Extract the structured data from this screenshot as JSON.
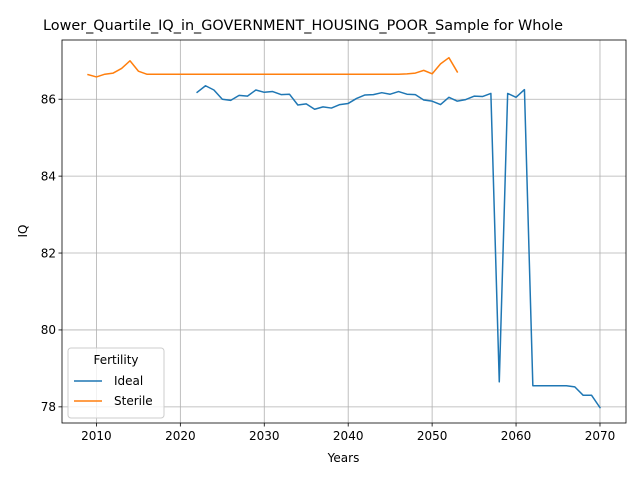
{
  "chart_data": {
    "type": "line",
    "title": "Lower_Quartile_IQ_in_GOVERNMENT_HOUSING_POOR_Sample for Whole",
    "xlabel": "Years",
    "ylabel": "IQ",
    "xlim": [
      2005.9,
      2073.1
    ],
    "ylim": [
      77.58,
      87.54
    ],
    "xticks": [
      2010,
      2020,
      2030,
      2040,
      2050,
      2060,
      2070
    ],
    "yticks": [
      78,
      80,
      82,
      84,
      86
    ],
    "grid": true,
    "legend": {
      "title": "Fertility",
      "placement": "lower-left"
    },
    "series": [
      {
        "name": "Ideal",
        "color": "#1f77b4",
        "x": [
          2022,
          2023,
          2024,
          2025,
          2026,
          2027,
          2028,
          2029,
          2030,
          2031,
          2032,
          2033,
          2034,
          2035,
          2036,
          2037,
          2038,
          2039,
          2040,
          2041,
          2042,
          2043,
          2044,
          2045,
          2046,
          2047,
          2048,
          2049,
          2050,
          2051,
          2052,
          2053,
          2054,
          2055,
          2056,
          2057,
          2058,
          2059,
          2060,
          2061,
          2062,
          2063,
          2064,
          2065,
          2066,
          2067,
          2068,
          2069,
          2070
        ],
        "y": [
          86.18,
          86.35,
          86.24,
          86.0,
          85.97,
          86.1,
          86.08,
          86.24,
          86.18,
          86.2,
          86.12,
          86.13,
          85.85,
          85.88,
          85.74,
          85.8,
          85.77,
          85.86,
          85.89,
          86.02,
          86.11,
          86.12,
          86.17,
          86.13,
          86.2,
          86.13,
          86.12,
          85.98,
          85.95,
          85.86,
          86.05,
          85.95,
          85.99,
          86.08,
          86.07,
          86.15,
          78.65,
          86.15,
          86.05,
          86.25,
          78.55,
          78.55,
          78.55,
          78.55,
          78.55,
          78.52,
          78.3,
          78.3,
          77.98
        ]
      },
      {
        "name": "Sterile",
        "color": "#ff7f0e",
        "x": [
          2009,
          2010,
          2011,
          2012,
          2013,
          2014,
          2015,
          2016,
          2017,
          2018,
          2019,
          2020,
          2021,
          2022,
          2023,
          2024,
          2025,
          2026,
          2027,
          2028,
          2029,
          2030,
          2031,
          2032,
          2033,
          2034,
          2035,
          2036,
          2037,
          2038,
          2039,
          2040,
          2041,
          2042,
          2043,
          2044,
          2045,
          2046,
          2047,
          2048,
          2049,
          2050,
          2051,
          2052,
          2053
        ],
        "y": [
          86.64,
          86.58,
          86.65,
          86.68,
          86.8,
          87.0,
          86.73,
          86.65,
          86.65,
          86.65,
          86.65,
          86.65,
          86.65,
          86.65,
          86.65,
          86.65,
          86.65,
          86.65,
          86.65,
          86.65,
          86.65,
          86.65,
          86.65,
          86.65,
          86.65,
          86.65,
          86.65,
          86.65,
          86.65,
          86.65,
          86.65,
          86.65,
          86.65,
          86.65,
          86.65,
          86.65,
          86.65,
          86.65,
          86.66,
          86.68,
          86.75,
          86.66,
          86.92,
          87.08,
          86.71
        ]
      }
    ]
  }
}
